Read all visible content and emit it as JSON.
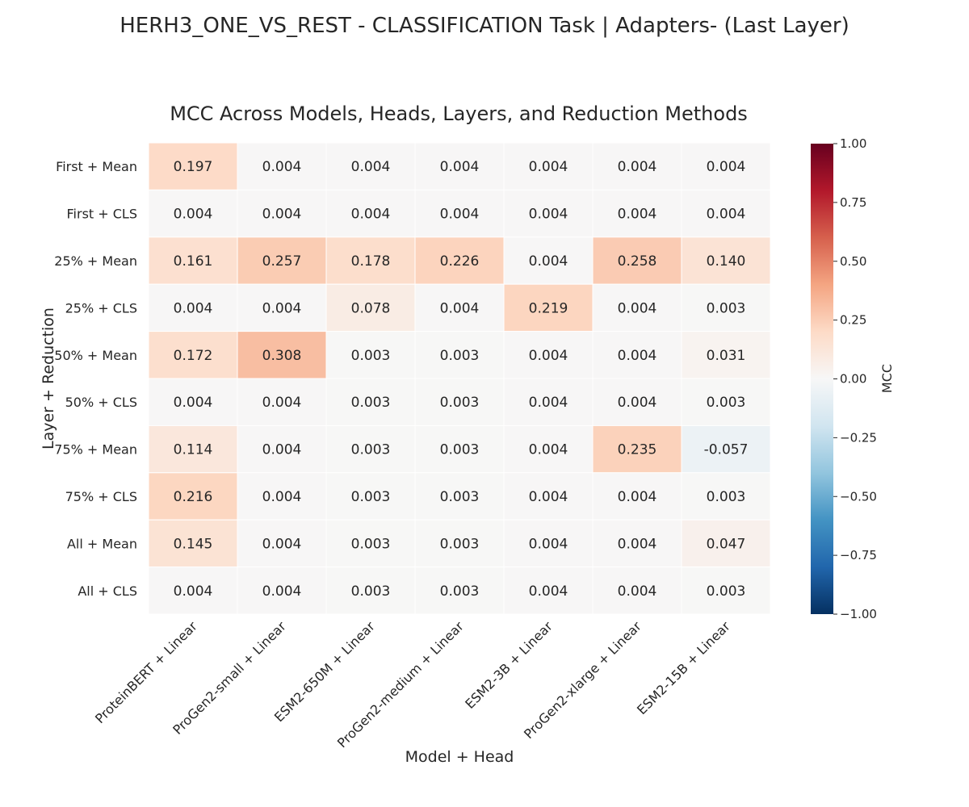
{
  "figure": {
    "suptitle": "HERH3_ONE_VS_REST - CLASSIFICATION Task | Adapters- (Last Layer)"
  },
  "chart_data": {
    "type": "heatmap",
    "title": "MCC Across Models, Heads, Layers, and Reduction Methods",
    "xlabel": "Model + Head",
    "ylabel": "Layer + Reduction",
    "x_categories": [
      "ProteinBERT + Linear",
      "ProGen2-small + Linear",
      "ESM2-650M + Linear",
      "ProGen2-medium + Linear",
      "ESM2-3B + Linear",
      "ProGen2-xlarge + Linear",
      "ESM2-15B + Linear"
    ],
    "y_categories": [
      "First + Mean",
      "First + CLS",
      "25% + Mean",
      "25% + CLS",
      "50% + Mean",
      "50% + CLS",
      "75% + Mean",
      "75% + CLS",
      "All + Mean",
      "All + CLS"
    ],
    "values": [
      [
        0.197,
        0.004,
        0.004,
        0.004,
        0.004,
        0.004,
        0.004
      ],
      [
        0.004,
        0.004,
        0.004,
        0.004,
        0.004,
        0.004,
        0.004
      ],
      [
        0.161,
        0.257,
        0.178,
        0.226,
        0.004,
        0.258,
        0.14
      ],
      [
        0.004,
        0.004,
        0.078,
        0.004,
        0.219,
        0.004,
        0.003
      ],
      [
        0.172,
        0.308,
        0.003,
        0.003,
        0.004,
        0.004,
        0.031
      ],
      [
        0.004,
        0.004,
        0.003,
        0.003,
        0.004,
        0.004,
        0.003
      ],
      [
        0.114,
        0.004,
        0.003,
        0.003,
        0.004,
        0.235,
        -0.057
      ],
      [
        0.216,
        0.004,
        0.003,
        0.003,
        0.004,
        0.004,
        0.003
      ],
      [
        0.145,
        0.004,
        0.003,
        0.003,
        0.004,
        0.004,
        0.047
      ],
      [
        0.004,
        0.004,
        0.003,
        0.003,
        0.004,
        0.004,
        0.003
      ]
    ],
    "cell_labels": [
      [
        "0.197",
        "0.004",
        "0.004",
        "0.004",
        "0.004",
        "0.004",
        "0.004"
      ],
      [
        "0.004",
        "0.004",
        "0.004",
        "0.004",
        "0.004",
        "0.004",
        "0.004"
      ],
      [
        "0.161",
        "0.257",
        "0.178",
        "0.226",
        "0.004",
        "0.258",
        "0.140"
      ],
      [
        "0.004",
        "0.004",
        "0.078",
        "0.004",
        "0.219",
        "0.004",
        "0.003"
      ],
      [
        "0.172",
        "0.308",
        "0.003",
        "0.003",
        "0.004",
        "0.004",
        "0.031"
      ],
      [
        "0.004",
        "0.004",
        "0.003",
        "0.003",
        "0.004",
        "0.004",
        "0.003"
      ],
      [
        "0.114",
        "0.004",
        "0.003",
        "0.003",
        "0.004",
        "0.235",
        "-0.057"
      ],
      [
        "0.216",
        "0.004",
        "0.003",
        "0.003",
        "0.004",
        "0.004",
        "0.003"
      ],
      [
        "0.145",
        "0.004",
        "0.003",
        "0.003",
        "0.004",
        "0.004",
        "0.047"
      ],
      [
        "0.004",
        "0.004",
        "0.003",
        "0.003",
        "0.004",
        "0.004",
        "0.003"
      ]
    ],
    "vmin": -1.0,
    "vmax": 1.0,
    "colormap": "RdBu_r",
    "colormap_stops": [
      "#053061",
      "#2166ac",
      "#4393c3",
      "#92c5de",
      "#d1e5f0",
      "#f7f7f7",
      "#fddbc7",
      "#f4a582",
      "#d6604d",
      "#b2182b",
      "#67001f"
    ],
    "cell_text_dark": "#262626",
    "cell_text_light": "#ffffff",
    "grid_line_color": "#ffffff",
    "colorbar": {
      "label": "MCC",
      "ticks": [
        1.0,
        0.75,
        0.5,
        0.25,
        0.0,
        -0.25,
        -0.5,
        -0.75,
        -1.0
      ],
      "tick_labels": [
        "1.00",
        "0.75",
        "0.50",
        "0.25",
        "0.00",
        "−0.25",
        "−0.50",
        "−0.75",
        "−1.00"
      ]
    }
  }
}
